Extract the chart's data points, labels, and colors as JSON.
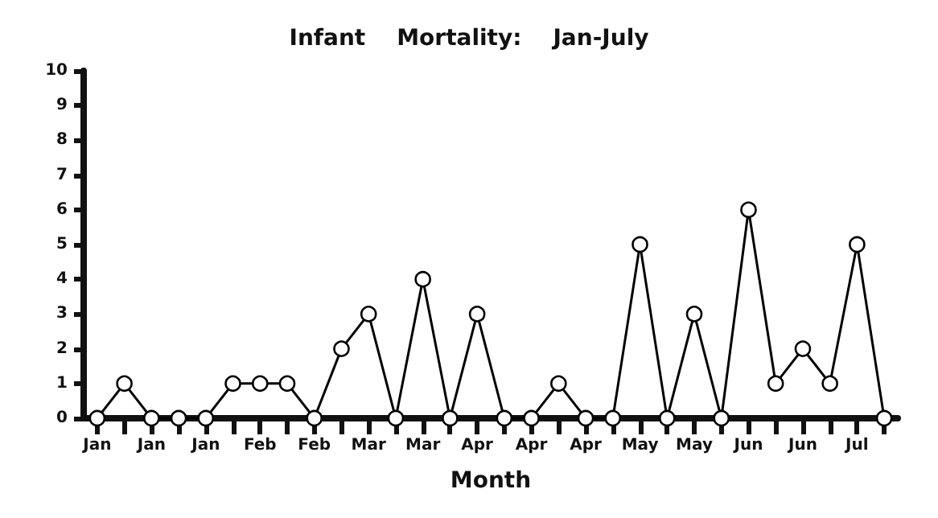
{
  "chart_data": {
    "type": "line",
    "title": "Infant    Mortality:    Jan-July",
    "xlabel": "Month",
    "categories": [
      "Jan",
      null,
      "Jan",
      null,
      "Jan",
      null,
      "Feb",
      null,
      "Feb",
      null,
      "Mar",
      null,
      "Mar",
      null,
      "Apr",
      null,
      "Apr",
      null,
      "Apr",
      null,
      "May",
      null,
      "May",
      null,
      "Jun",
      null,
      "Jun",
      null,
      "Jul",
      null
    ],
    "series": [
      {
        "color": "#000000",
        "values": [
          0,
          1,
          0,
          0,
          0,
          1,
          1,
          1,
          0,
          2,
          3,
          0,
          4,
          0,
          3,
          0,
          0,
          1,
          0,
          0,
          5,
          0,
          3,
          0,
          6,
          1,
          2,
          1,
          5,
          0
        ]
      }
    ],
    "ylim": [
      0,
      10
    ],
    "yticks": [
      0,
      1,
      2,
      3,
      4,
      5,
      6,
      7,
      8,
      9,
      10
    ],
    "marker": "circle",
    "line_style": "solid"
  }
}
